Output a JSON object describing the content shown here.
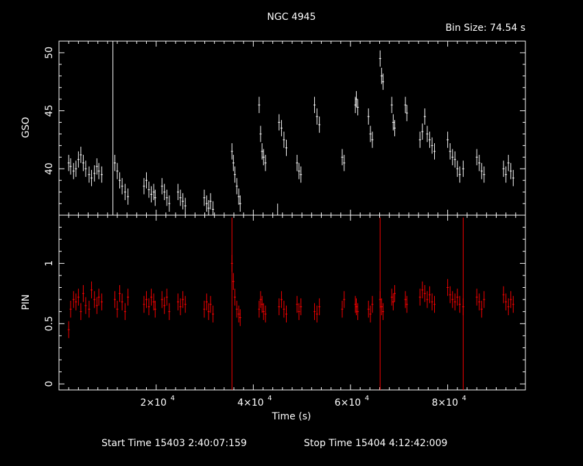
{
  "chart_data": [
    {
      "type": "line",
      "title": "NGC 4945",
      "bin_size_label": "Bin Size:  74.54  s",
      "ylabel": "GSO",
      "xlabel": "",
      "xlim": [
        0,
        96000
      ],
      "ylim": [
        36,
        51
      ],
      "yticks": [
        40,
        45,
        50
      ],
      "color": "#ffffff",
      "series": [
        {
          "x": [
            2000,
            2400,
            3000,
            3500,
            4000,
            4500,
            5000,
            5500,
            6200,
            6700,
            7300,
            7800,
            8200,
            8800,
            11500,
            12000,
            12500,
            13000,
            13600,
            14200,
            17500,
            18000,
            18500,
            19000,
            19500,
            19800,
            21200,
            21700,
            22200,
            22700,
            24500,
            25000,
            25500,
            26000,
            29900,
            30400,
            30800,
            31200,
            31700,
            35600,
            35900,
            36200,
            36600,
            37000,
            37300,
            41200,
            41500,
            41800,
            42100,
            42500,
            45300,
            45800,
            46300,
            46800,
            49000,
            49400,
            49800,
            52600,
            53100,
            53600,
            58300,
            58700,
            61000,
            61200,
            61500,
            63700,
            64100,
            64500,
            66100,
            66400,
            66700,
            68500,
            68800,
            69100,
            71300,
            71600,
            74300,
            74800,
            75300,
            75800,
            76300,
            76800,
            77300,
            80000,
            80500,
            81000,
            81500,
            82000,
            82500,
            83200,
            86000,
            86500,
            87000,
            87500,
            91500,
            92000,
            92500,
            93000,
            93500
          ],
          "values": [
            40.5,
            40.2,
            39.8,
            40.0,
            40.8,
            41.2,
            40.5,
            40.0,
            39.5,
            39.2,
            39.6,
            40.2,
            39.8,
            39.5,
            40.5,
            39.8,
            39.0,
            38.5,
            38.0,
            37.6,
            38.5,
            39.0,
            38.2,
            37.8,
            38.0,
            37.5,
            38.5,
            38.0,
            37.5,
            37.0,
            38.0,
            37.5,
            37.2,
            36.8,
            37.5,
            37.0,
            36.6,
            37.2,
            36.5,
            41.5,
            40.5,
            39.5,
            38.5,
            37.6,
            37.0,
            45.5,
            43.0,
            41.5,
            41.0,
            40.5,
            44.0,
            43.5,
            42.5,
            41.8,
            40.5,
            39.8,
            39.5,
            45.5,
            44.5,
            43.8,
            41.0,
            40.5,
            45.5,
            46.0,
            45.3,
            44.5,
            43.0,
            42.5,
            49.5,
            48.0,
            47.5,
            45.5,
            44.0,
            43.5,
            45.5,
            44.8,
            42.5,
            43.2,
            44.5,
            43.0,
            42.5,
            42.0,
            41.5,
            42.5,
            41.5,
            41.0,
            40.8,
            40.0,
            39.5,
            40.0,
            41.0,
            40.5,
            39.8,
            39.5,
            40.0,
            39.5,
            40.5,
            39.8,
            39.2
          ]
        }
      ],
      "spikes_x": [
        11100,
        45000
      ],
      "spikes_y": [
        51,
        37
      ]
    },
    {
      "type": "line",
      "title": "",
      "ylabel": "PIN",
      "xlabel": "Time (s)",
      "xlim": [
        0,
        96000
      ],
      "ylim": [
        -0.05,
        1.4
      ],
      "yticks": [
        0,
        0.5,
        1
      ],
      "ytick_labels": [
        "0",
        "0.5",
        "1"
      ],
      "xticks": [
        20000,
        40000,
        60000,
        80000
      ],
      "xtick_labels": [
        "2×10",
        "4×10",
        "6×10",
        "8×10"
      ],
      "xtick_exponent": "4",
      "color": "#ff0000",
      "series": [
        {
          "x": [
            2000,
            2400,
            3000,
            3500,
            4000,
            4500,
            5000,
            5500,
            6200,
            6700,
            7300,
            7800,
            8200,
            8800,
            11500,
            12000,
            12500,
            13000,
            13600,
            14200,
            17500,
            18000,
            18500,
            19000,
            19500,
            19800,
            21200,
            21700,
            22200,
            22700,
            24500,
            25000,
            25500,
            26000,
            29900,
            30400,
            30800,
            31200,
            31700,
            35600,
            35900,
            36200,
            36600,
            37000,
            37300,
            41200,
            41500,
            41800,
            42100,
            42500,
            45300,
            45800,
            46300,
            46800,
            49000,
            49400,
            49800,
            52600,
            53100,
            53600,
            58300,
            58700,
            61000,
            61200,
            61500,
            63700,
            64100,
            64500,
            66100,
            66400,
            66700,
            68500,
            68800,
            69100,
            71300,
            71600,
            74300,
            74800,
            75300,
            75800,
            76300,
            76800,
            77300,
            80000,
            80500,
            81000,
            81500,
            82000,
            82500,
            83200,
            86000,
            86500,
            87000,
            87500,
            91500,
            92000,
            92500,
            93000,
            93500
          ],
          "values": [
            0.45,
            0.62,
            0.7,
            0.68,
            0.72,
            0.6,
            0.75,
            0.65,
            0.62,
            0.78,
            0.7,
            0.65,
            0.72,
            0.68,
            0.7,
            0.62,
            0.75,
            0.68,
            0.6,
            0.72,
            0.66,
            0.7,
            0.64,
            0.72,
            0.68,
            0.62,
            0.7,
            0.65,
            0.72,
            0.6,
            0.68,
            0.64,
            0.7,
            0.66,
            0.62,
            0.68,
            0.6,
            0.66,
            0.58,
            1.0,
            0.85,
            0.72,
            0.62,
            0.58,
            0.55,
            0.62,
            0.7,
            0.66,
            0.6,
            0.58,
            0.64,
            0.7,
            0.62,
            0.58,
            0.66,
            0.6,
            0.64,
            0.6,
            0.58,
            0.64,
            0.62,
            0.7,
            0.66,
            0.64,
            0.6,
            0.62,
            0.58,
            0.66,
            0.7,
            0.64,
            0.6,
            0.72,
            0.68,
            0.75,
            0.7,
            0.66,
            0.72,
            0.78,
            0.75,
            0.7,
            0.74,
            0.68,
            0.66,
            0.8,
            0.74,
            0.7,
            0.68,
            0.72,
            0.66,
            0.64,
            0.72,
            0.68,
            0.62,
            0.7,
            0.74,
            0.68,
            0.64,
            0.7,
            0.66
          ]
        }
      ],
      "spikes_x": [
        35600,
        66100,
        83200
      ],
      "spikes_y": [
        1.38,
        1.38,
        1.38
      ]
    }
  ],
  "footer": {
    "start_time": "Start Time 15403  2:40:07:159",
    "stop_time": "Stop Time 15404  4:12:42:009"
  }
}
